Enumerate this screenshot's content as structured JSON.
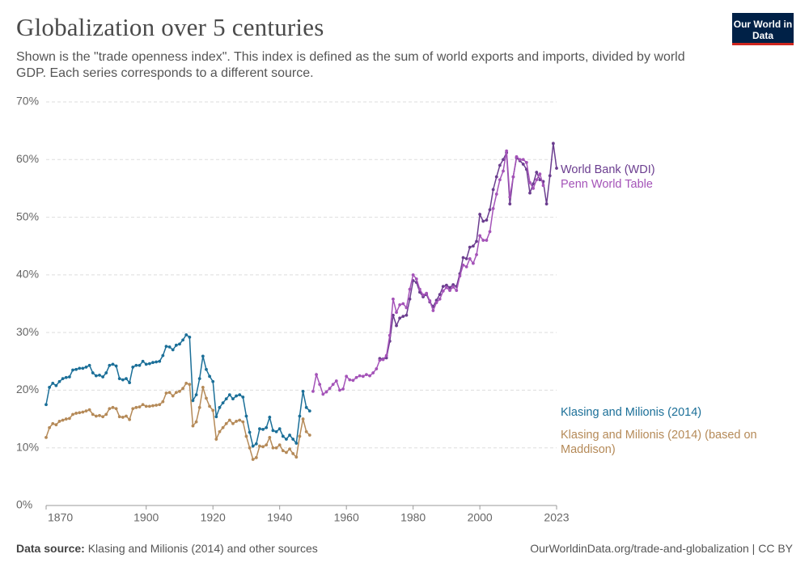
{
  "header": {
    "title": "Globalization over 5 centuries",
    "subtitle": "Shown is the \"trade openness index\". This index is defined as the sum of world exports and imports, divided by world GDP. Each series corresponds to a different source.",
    "logo": "Our World in Data"
  },
  "footer": {
    "source_label": "Data source:",
    "source": "Klasing and Milionis (2014) and other sources",
    "url": "OurWorldinData.org/trade-and-globalization | CC BY"
  },
  "chart_data": {
    "type": "line",
    "grid": true,
    "xlim": [
      1870,
      2023
    ],
    "xticks": [
      1870,
      1900,
      1920,
      1940,
      1960,
      1980,
      2000,
      2023
    ],
    "ylim": [
      0,
      70
    ],
    "yticks": [
      {
        "value": 0,
        "label": "0%"
      },
      {
        "value": 10,
        "label": "10%"
      },
      {
        "value": 20,
        "label": "20%"
      },
      {
        "value": 30,
        "label": "30%"
      },
      {
        "value": 40,
        "label": "40%"
      },
      {
        "value": 50,
        "label": "50%"
      },
      {
        "value": 60,
        "label": "60%"
      },
      {
        "value": 70,
        "label": "70%"
      }
    ],
    "series": [
      {
        "name": "World Bank (WDI)",
        "color": "#6b3d8f",
        "x": [
          1970,
          1971,
          1972,
          1973,
          1974,
          1975,
          1976,
          1977,
          1978,
          1979,
          1980,
          1981,
          1982,
          1983,
          1984,
          1985,
          1986,
          1987,
          1988,
          1989,
          1990,
          1991,
          1992,
          1993,
          1994,
          1995,
          1996,
          1997,
          1998,
          1999,
          2000,
          2001,
          2002,
          2003,
          2004,
          2005,
          2006,
          2007,
          2008,
          2009,
          2010,
          2011,
          2012,
          2013,
          2014,
          2015,
          2016,
          2017,
          2018,
          2019,
          2020,
          2021,
          2022,
          2023
        ],
        "values": [
          25.5,
          25.4,
          25.6,
          28.5,
          33,
          31.2,
          32.5,
          32.8,
          33,
          35.8,
          39,
          38.7,
          37,
          36.2,
          36.6,
          35.3,
          34.5,
          35.6,
          36.6,
          38,
          38.2,
          37.8,
          38.3,
          38,
          40.2,
          43,
          42.8,
          44.8,
          45,
          45.8,
          50.5,
          49.3,
          49.5,
          51.3,
          54.8,
          57,
          59,
          60,
          61.2,
          52.3,
          57,
          60.3,
          59.8,
          59.2,
          58.3,
          54.2,
          55.8,
          57.8,
          56.5,
          56.2,
          52.3,
          57.2,
          62.8,
          58.5
        ]
      },
      {
        "name": "Penn World Table",
        "color": "#a453b8",
        "x": [
          1950,
          1951,
          1952,
          1953,
          1954,
          1955,
          1956,
          1957,
          1958,
          1959,
          1960,
          1961,
          1962,
          1963,
          1964,
          1965,
          1966,
          1967,
          1968,
          1969,
          1970,
          1971,
          1972,
          1973,
          1974,
          1975,
          1976,
          1977,
          1978,
          1979,
          1980,
          1981,
          1982,
          1983,
          1984,
          1985,
          1986,
          1987,
          1988,
          1989,
          1990,
          1991,
          1992,
          1993,
          1994,
          1995,
          1996,
          1997,
          1998,
          1999,
          2000,
          2001,
          2002,
          2003,
          2004,
          2005,
          2006,
          2007,
          2008,
          2009,
          2010,
          2011,
          2012,
          2013,
          2014,
          2015,
          2016,
          2017,
          2018,
          2019
        ],
        "values": [
          19.8,
          22.7,
          21,
          19.3,
          19.7,
          20.3,
          21,
          21.6,
          20,
          20.2,
          22.4,
          21.8,
          21.7,
          22.2,
          22.5,
          22.4,
          22.7,
          22.5,
          23,
          23.7,
          25.2,
          25.3,
          26,
          29.5,
          35.8,
          33.5,
          34.8,
          35,
          34.3,
          37.5,
          40,
          39.3,
          37.5,
          36.5,
          36.8,
          35.5,
          33.8,
          35.2,
          35.8,
          37.2,
          37.8,
          37.3,
          37.9,
          37.3,
          39.8,
          41.7,
          41.4,
          42.8,
          42,
          43.5,
          46.8,
          46,
          46,
          47.5,
          51.5,
          54,
          56.5,
          58,
          61.5,
          53.5,
          57,
          60.5,
          60,
          60,
          59.5,
          56,
          55,
          56.5,
          57.5,
          55.5
        ]
      },
      {
        "name": "Klasing and Milionis (2014)",
        "color": "#1b6f98",
        "x": [
          1870,
          1871,
          1872,
          1873,
          1874,
          1875,
          1876,
          1877,
          1878,
          1879,
          1880,
          1881,
          1882,
          1883,
          1884,
          1885,
          1886,
          1887,
          1888,
          1889,
          1890,
          1891,
          1892,
          1893,
          1894,
          1895,
          1896,
          1897,
          1898,
          1899,
          1900,
          1901,
          1902,
          1903,
          1904,
          1905,
          1906,
          1907,
          1908,
          1909,
          1910,
          1911,
          1912,
          1913,
          1914,
          1915,
          1916,
          1917,
          1918,
          1919,
          1920,
          1921,
          1922,
          1923,
          1924,
          1925,
          1926,
          1927,
          1928,
          1929,
          1930,
          1931,
          1932,
          1933,
          1934,
          1935,
          1936,
          1937,
          1938,
          1939,
          1940,
          1941,
          1942,
          1943,
          1944,
          1945,
          1946,
          1947,
          1948,
          1949
        ],
        "values": [
          17.5,
          20.5,
          21.2,
          20.8,
          21.5,
          22,
          22.2,
          22.3,
          23.5,
          23.6,
          23.8,
          23.8,
          24,
          24.3,
          23,
          22.5,
          22.6,
          22.3,
          23,
          24.3,
          24.5,
          24.2,
          22,
          21.8,
          22,
          21.3,
          24,
          24.3,
          24.3,
          25,
          24.5,
          24.6,
          24.8,
          24.9,
          25,
          26,
          27.6,
          27.5,
          27,
          27.8,
          28,
          28.7,
          29.6,
          29.2,
          18.2,
          19.2,
          22,
          25.9,
          23.6,
          22.4,
          21.5,
          15.4,
          17,
          17.8,
          18.5,
          19.2,
          18.5,
          19,
          19.2,
          18.8,
          15.5,
          12.7,
          10.3,
          10.7,
          13.3,
          13.2,
          13.5,
          15.3,
          13,
          12.8,
          13.3,
          12,
          11.5,
          12.2,
          11.5,
          10.8,
          15.5,
          19.8,
          17,
          16.4
        ]
      },
      {
        "name": "Klasing and Milionis (2014) (based on Maddison)",
        "color": "#b58a58",
        "x": [
          1870,
          1871,
          1872,
          1873,
          1874,
          1875,
          1876,
          1877,
          1878,
          1879,
          1880,
          1881,
          1882,
          1883,
          1884,
          1885,
          1886,
          1887,
          1888,
          1889,
          1890,
          1891,
          1892,
          1893,
          1894,
          1895,
          1896,
          1897,
          1898,
          1899,
          1900,
          1901,
          1902,
          1903,
          1904,
          1905,
          1906,
          1907,
          1908,
          1909,
          1910,
          1911,
          1912,
          1913,
          1914,
          1915,
          1916,
          1917,
          1918,
          1919,
          1920,
          1921,
          1922,
          1923,
          1924,
          1925,
          1926,
          1927,
          1928,
          1929,
          1930,
          1931,
          1932,
          1933,
          1934,
          1935,
          1936,
          1937,
          1938,
          1939,
          1940,
          1941,
          1942,
          1943,
          1944,
          1945,
          1946,
          1947,
          1948,
          1949
        ],
        "values": [
          11.8,
          13.5,
          14.2,
          14,
          14.6,
          14.8,
          15,
          15.1,
          15.8,
          16,
          16.1,
          16.2,
          16.4,
          16.6,
          15.8,
          15.5,
          15.6,
          15.4,
          15.8,
          16.8,
          17,
          16.8,
          15.4,
          15.3,
          15.5,
          14.9,
          16.8,
          17,
          17.1,
          17.5,
          17.2,
          17.2,
          17.3,
          17.4,
          17.5,
          18,
          19.5,
          19.6,
          19,
          19.6,
          19.8,
          20.3,
          21.2,
          21,
          13.8,
          14.5,
          17,
          20.5,
          18.6,
          17.2,
          16.5,
          11.5,
          12.8,
          13.5,
          14.2,
          14.8,
          14.2,
          14.6,
          14.8,
          14.5,
          12,
          10,
          8,
          8.3,
          10.3,
          10.2,
          10.5,
          11.8,
          10,
          10,
          10.5,
          9.5,
          9.2,
          9.8,
          9,
          8.4,
          12,
          15,
          12.8,
          12.2
        ]
      }
    ]
  }
}
